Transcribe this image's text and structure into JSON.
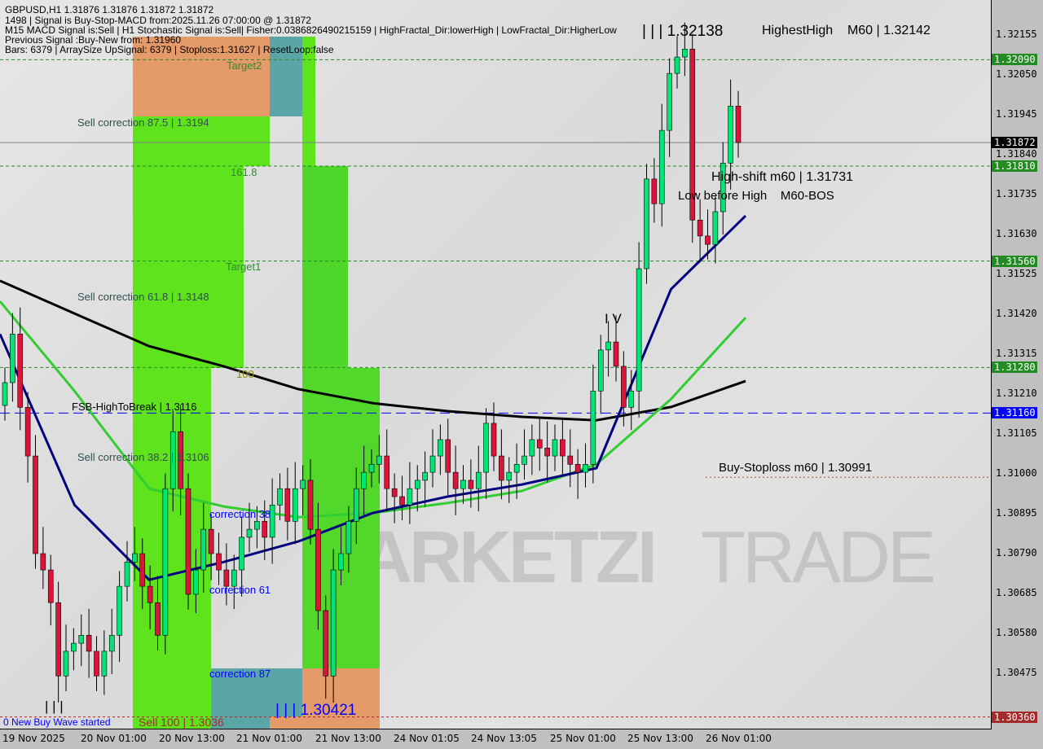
{
  "header": {
    "line1": "GBPUSD,H1  1.31876 1.31876 1.31872 1.31872",
    "line2": "1498 | Signal is Buy-Stop-MACD from:2025.11.26 07:00:00 @ 1.31872",
    "line3": "M15 MACD Signal is:Sell | H1 Stochastic Signal is:Sell| Fisher:0.0386826490215159 | HighFractal_Dir:lowerHigh | LowFractal_Dir:HigherLow",
    "line4": "Previous Signal :Buy-New from: 1.31960",
    "line5": "Bars: 6379 | ArraySize UpSignal: 6379 | Stoploss:1.31627 | ResetLoop:false"
  },
  "watermark": {
    "left": "MARKETZI",
    "right": "TRADE"
  },
  "labels": {
    "target2": "Target2",
    "sell875": "Sell correction 87.5 | 1.3194",
    "fib1618": "161.8",
    "target1": "Target1",
    "sell618": "Sell correction 61.8 | 1.3148",
    "fib100": "100",
    "fsb": "FSB-HighToBreak | 1.3116",
    "sell382": "Sell correction 38.2 | 1.3106",
    "corr38": "correction 38",
    "corr61": "correction 61",
    "corr87": "correction 87",
    "low_wave": "| | | 1.30421",
    "wave_marks": "| | |",
    "new_buy": "0 New Buy Wave started",
    "sell100": "Sell 100 | 1.3036",
    "high_wave": "| | | 1.32138",
    "highest": "HighestHigh    M60 | 1.32142",
    "highshift": "High-shift m60 | 1.31731",
    "lowbefore": "Low before High    M60-BOS",
    "wave4": "I V",
    "buystop": "Buy-Stoploss m60 | 1.30991"
  },
  "colors": {
    "bull": "#00e676",
    "bear": "#dc143c",
    "ma200": "#000000",
    "ma_fast": "#000080",
    "ma_mid": "#32cd32",
    "zone_green": "#5ee31c",
    "zone_orange": "#e59a6a",
    "zone_teal": "#5aa6a6"
  },
  "chart_data": {
    "type": "candlestick",
    "symbol": "GBPUSD",
    "timeframe": "H1",
    "ylim": [
      1.303,
      1.3224
    ],
    "y_ticks": [
      "1.32155",
      "1.32050",
      "1.31945",
      "1.31840",
      "1.31735",
      "1.31630",
      "1.31525",
      "1.31420",
      "1.31315",
      "1.31210",
      "1.31105",
      "1.31000",
      "1.30895",
      "1.30790",
      "1.30685",
      "1.30580",
      "1.30475"
    ],
    "price_tags": [
      {
        "value": "1.32090",
        "color": "#228b22"
      },
      {
        "value": "1.31872",
        "color": "#000000"
      },
      {
        "value": "1.31810",
        "color": "#228b22"
      },
      {
        "value": "1.31560",
        "color": "#228b22"
      },
      {
        "value": "1.31280",
        "color": "#228b22"
      },
      {
        "value": "1.31160",
        "color": "#0000ff"
      },
      {
        "value": "1.30360",
        "color": "#a52a2a"
      }
    ],
    "x_ticks": [
      "19 Nov 2025",
      "20 Nov 01:00",
      "20 Nov 13:00",
      "21 Nov 01:00",
      "21 Nov 13:00",
      "24 Nov 01:05",
      "24 Nov 13:05",
      "25 Nov 01:00",
      "25 Nov 13:00",
      "26 Nov 01:00"
    ],
    "first_open": 1.3118,
    "closes": [
      1.3124,
      1.31368,
      1.31175,
      1.31047,
      1.3079,
      1.30747,
      1.30661,
      1.30468,
      1.30533,
      1.30554,
      1.30575,
      1.30533,
      1.30468,
      1.30533,
      1.30575,
      1.30704,
      1.30768,
      1.3079,
      1.30704,
      1.30661,
      1.30575,
      1.30961,
      1.31111,
      1.30961,
      1.30683,
      1.30747,
      1.30854,
      1.3079,
      1.30747,
      1.30704,
      1.30747,
      1.30833,
      1.30854,
      1.30875,
      1.30833,
      1.30918,
      1.30961,
      1.30875,
      1.30961,
      1.30983,
      1.30854,
      1.3064,
      1.30468,
      1.30747,
      1.3079,
      1.30875,
      1.30961,
      1.31004,
      1.31025,
      1.31047,
      1.30961,
      1.3094,
      1.30918,
      1.30961,
      1.30983,
      1.31004,
      1.31047,
      1.3109,
      1.31004,
      1.30961,
      1.30983,
      1.30961,
      1.31004,
      1.31133,
      1.31047,
      1.30983,
      1.31004,
      1.31025,
      1.31047,
      1.3109,
      1.31068,
      1.31047,
      1.3109,
      1.31047,
      1.31025,
      1.31004,
      1.31025,
      1.31218,
      1.31326,
      1.31347,
      1.31283,
      1.31175,
      1.31218,
      1.3154,
      1.31776,
      1.31711,
      1.31904,
      1.32054,
      1.32097,
      1.32118,
      1.31668,
      1.31626,
      1.31604,
      1.3169,
      1.31818,
      1.31968,
      1.31872
    ],
    "ma_samples": {
      "ma200": [
        1.31508,
        1.31422,
        1.31336,
        1.31283,
        1.31223,
        1.31186,
        1.31165,
        1.3115,
        1.31141,
        1.31176,
        1.31244
      ],
      "ma_fast": [
        1.31368,
        1.30918,
        1.30721,
        1.30768,
        1.30822,
        1.30897,
        1.3094,
        1.30972,
        1.31015,
        1.31486,
        1.31679
      ],
      "ma_mid": [
        1.31454,
        1.31218,
        1.30961,
        1.30914,
        1.30886,
        1.30897,
        1.30923,
        1.30955,
        1.31025,
        1.31197,
        1.31411
      ]
    },
    "levels": [
      {
        "value": 1.3209,
        "style": "green-dotted"
      },
      {
        "value": 1.31872,
        "style": "grey-solid"
      },
      {
        "value": 1.3181,
        "style": "green-dotted"
      },
      {
        "value": 1.3156,
        "style": "green-dotted"
      },
      {
        "value": 1.3128,
        "style": "green-dotted"
      },
      {
        "value": 1.3116,
        "style": "blue-dashed"
      },
      {
        "value": 1.30991,
        "style": "brown-dotted"
      },
      {
        "value": 1.3036,
        "style": "red-dotted"
      }
    ]
  }
}
